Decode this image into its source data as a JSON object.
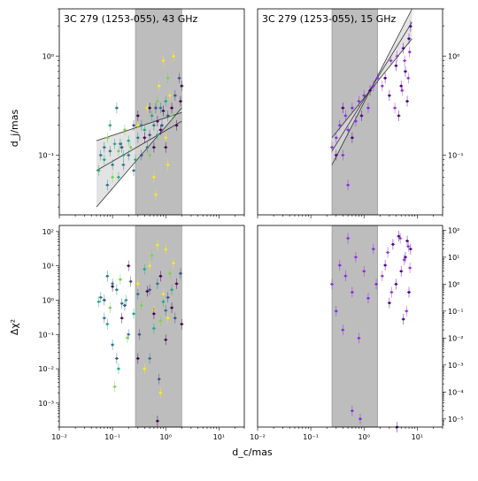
{
  "figure": {
    "x_label": "d_c/mas",
    "y_label_top": "d_j/mas",
    "y_label_bottom": "Δχ²"
  },
  "chart_data": [
    {
      "panel": "top-left",
      "type": "scatter",
      "title": "3C 279 (1253-055), 43 GHz",
      "xscale": "log",
      "yscale": "log",
      "xlim": [
        0.01,
        30
      ],
      "ylim": [
        0.025,
        3.0
      ],
      "xticks": [],
      "xtick_labels": [],
      "yticks": [
        0.1,
        1
      ],
      "ytick_labels": [
        "10⁻¹",
        "10⁰"
      ],
      "ytick_side": "left",
      "shaded_band": [
        0.27,
        2.0
      ],
      "shaded_region_x": [
        0.05,
        2.0
      ],
      "fit_lines": [
        [
          [
            0.05,
            0.03
          ],
          [
            2.0,
            0.3
          ]
        ],
        [
          [
            0.05,
            0.14
          ],
          [
            2.0,
            0.27
          ]
        ],
        [
          [
            0.05,
            0.07
          ],
          [
            2.0,
            0.22
          ]
        ]
      ],
      "series": [
        {
          "color": "#2a788e",
          "points": [
            [
              0.06,
              0.1
            ],
            [
              0.07,
              0.12
            ],
            [
              0.08,
              0.05
            ],
            [
              0.09,
              0.11
            ],
            [
              0.1,
              0.08
            ],
            [
              0.12,
              0.3
            ],
            [
              0.14,
              0.13
            ],
            [
              0.16,
              0.08
            ],
            [
              0.2,
              0.1
            ],
            [
              0.25,
              0.07
            ],
            [
              0.3,
              0.15
            ],
            [
              0.35,
              0.2
            ],
            [
              0.45,
              0.12
            ],
            [
              0.6,
              0.2
            ],
            [
              0.8,
              0.3
            ]
          ]
        },
        {
          "color": "#22a884",
          "points": [
            [
              0.055,
              0.07
            ],
            [
              0.07,
              0.09
            ],
            [
              0.09,
              0.2
            ],
            [
              0.11,
              0.13
            ],
            [
              0.13,
              0.06
            ],
            [
              0.16,
              0.1
            ],
            [
              0.2,
              0.14
            ],
            [
              0.27,
              0.09
            ],
            [
              0.4,
              0.18
            ],
            [
              0.55,
              0.25
            ],
            [
              0.7,
              0.16
            ],
            [
              1.0,
              0.35
            ]
          ]
        },
        {
          "color": "#7ad151",
          "points": [
            [
              0.08,
              0.15
            ],
            [
              0.1,
              0.06
            ],
            [
              0.13,
              0.11
            ],
            [
              0.17,
              0.18
            ],
            [
              0.22,
              0.12
            ],
            [
              0.5,
              0.1
            ],
            [
              0.7,
              0.35
            ],
            [
              1.1,
              0.6
            ],
            [
              1.3,
              0.25
            ]
          ]
        },
        {
          "color": "#fde725",
          "points": [
            [
              0.3,
              0.2
            ],
            [
              0.45,
              0.3
            ],
            [
              0.6,
              0.06
            ],
            [
              0.75,
              0.5
            ],
            [
              0.9,
              0.9
            ],
            [
              1.0,
              0.15
            ],
            [
              1.1,
              0.08
            ],
            [
              1.2,
              0.4
            ],
            [
              1.4,
              1.0
            ],
            [
              0.65,
              0.04
            ]
          ]
        },
        {
          "color": "#440154",
          "points": [
            [
              0.3,
              0.25
            ],
            [
              0.4,
              0.15
            ],
            [
              0.5,
              0.3
            ],
            [
              0.6,
              0.12
            ],
            [
              0.7,
              0.22
            ],
            [
              0.8,
              0.18
            ],
            [
              0.9,
              0.28
            ],
            [
              1.0,
              0.12
            ],
            [
              1.3,
              0.3
            ],
            [
              1.6,
              0.2
            ],
            [
              1.9,
              0.35
            ],
            [
              2.0,
              0.5
            ]
          ]
        },
        {
          "color": "#3b528b",
          "points": [
            [
              0.15,
              0.12
            ],
            [
              0.25,
              0.2
            ],
            [
              0.35,
              0.1
            ],
            [
              0.5,
              0.16
            ],
            [
              0.65,
              0.3
            ],
            [
              0.85,
              0.2
            ],
            [
              1.1,
              0.25
            ],
            [
              1.5,
              0.4
            ],
            [
              1.8,
              0.6
            ]
          ]
        }
      ]
    },
    {
      "panel": "top-right",
      "type": "scatter",
      "title": "3C 279 (1253-055), 15 GHz",
      "xscale": "log",
      "yscale": "log",
      "xlim": [
        0.01,
        30
      ],
      "ylim": [
        0.025,
        3.0
      ],
      "xticks": [],
      "xtick_labels": [],
      "yticks": [
        0.1,
        1
      ],
      "ytick_labels": [
        "10⁻¹",
        "10⁰"
      ],
      "ytick_side": "right",
      "shaded_band": [
        0.25,
        1.8
      ],
      "shaded_region_x": [
        0.25,
        8.0
      ],
      "fit_lines": [
        [
          [
            0.25,
            0.08
          ],
          [
            8.0,
            3.0
          ]
        ],
        [
          [
            0.25,
            0.15
          ],
          [
            8.0,
            1.5
          ]
        ],
        [
          [
            0.25,
            0.11
          ],
          [
            8.0,
            2.2
          ]
        ]
      ],
      "series": [
        {
          "color": "#8a2be2",
          "points": [
            [
              0.25,
              0.12
            ],
            [
              0.3,
              0.15
            ],
            [
              0.35,
              0.2
            ],
            [
              0.4,
              0.1
            ],
            [
              0.45,
              0.25
            ],
            [
              0.5,
              0.18
            ],
            [
              0.6,
              0.3
            ],
            [
              0.7,
              0.22
            ],
            [
              0.8,
              0.35
            ],
            [
              1.0,
              0.4
            ],
            [
              1.2,
              0.3
            ],
            [
              1.5,
              0.5
            ],
            [
              1.8,
              0.6
            ],
            [
              0.5,
              0.05
            ]
          ]
        },
        {
          "color": "#4b0082",
          "points": [
            [
              0.3,
              0.1
            ],
            [
              0.4,
              0.3
            ],
            [
              0.6,
              0.15
            ],
            [
              0.9,
              0.25
            ],
            [
              1.3,
              0.45
            ],
            [
              2.5,
              0.6
            ],
            [
              3.0,
              0.4
            ],
            [
              4.0,
              0.8
            ],
            [
              5.0,
              0.5
            ],
            [
              5.5,
              1.2
            ],
            [
              6.0,
              0.7
            ],
            [
              7.0,
              1.5
            ],
            [
              7.5,
              2.0
            ],
            [
              6.5,
              0.35
            ],
            [
              4.5,
              0.25
            ]
          ]
        },
        {
          "color": "#9932cc",
          "points": [
            [
              2.2,
              0.5
            ],
            [
              3.2,
              0.9
            ],
            [
              3.8,
              0.3
            ],
            [
              4.2,
              1.0
            ],
            [
              5.2,
              0.45
            ],
            [
              5.8,
              0.9
            ],
            [
              6.8,
              0.6
            ],
            [
              7.2,
              1.1
            ]
          ]
        }
      ]
    },
    {
      "panel": "bottom-left",
      "type": "scatter",
      "title": "",
      "xscale": "log",
      "yscale": "log",
      "xlim": [
        0.01,
        30
      ],
      "ylim": [
        0.0002,
        150
      ],
      "xticks": [
        0.01,
        0.1,
        1,
        10
      ],
      "xtick_labels": [
        "10⁻²",
        "10⁻¹",
        "10⁰",
        "10¹"
      ],
      "yticks": [
        0.001,
        0.01,
        0.1,
        1,
        10,
        100
      ],
      "ytick_labels": [
        "10⁻³",
        "10⁻²",
        "10⁻¹",
        "10⁰",
        "10¹",
        "10²"
      ],
      "ytick_side": "left",
      "shaded_band": [
        0.27,
        2.0
      ],
      "series": [
        {
          "color": "#2a788e",
          "points": [
            [
              0.06,
              1.2
            ],
            [
              0.07,
              0.3
            ],
            [
              0.08,
              5.0
            ],
            [
              0.1,
              0.05
            ],
            [
              0.12,
              2.0
            ],
            [
              0.15,
              0.8
            ],
            [
              0.2,
              0.1
            ],
            [
              0.3,
              1.5
            ],
            [
              0.5,
              0.02
            ],
            [
              0.7,
              3.0
            ],
            [
              1.0,
              0.5
            ]
          ]
        },
        {
          "color": "#22a884",
          "points": [
            [
              0.055,
              0.9
            ],
            [
              0.08,
              0.2
            ],
            [
              0.1,
              3.0
            ],
            [
              0.13,
              0.01
            ],
            [
              0.18,
              1.0
            ],
            [
              0.25,
              0.4
            ],
            [
              0.4,
              8.0
            ],
            [
              0.6,
              0.15
            ],
            [
              0.9,
              0.9
            ],
            [
              1.3,
              2.0
            ]
          ]
        },
        {
          "color": "#7ad151",
          "points": [
            [
              0.09,
              0.6
            ],
            [
              0.11,
              0.003
            ],
            [
              0.14,
              4.0
            ],
            [
              0.19,
              0.08
            ],
            [
              0.35,
              0.7
            ],
            [
              0.55,
              20.0
            ],
            [
              0.8,
              0.25
            ],
            [
              1.2,
              6.0
            ]
          ]
        },
        {
          "color": "#fde725",
          "points": [
            [
              0.3,
              3.0
            ],
            [
              0.4,
              0.01
            ],
            [
              0.5,
              10.0
            ],
            [
              0.6,
              0.5
            ],
            [
              0.7,
              40.0
            ],
            [
              0.8,
              0.002
            ],
            [
              0.9,
              1.5
            ],
            [
              1.0,
              30.0
            ],
            [
              1.1,
              0.3
            ],
            [
              1.4,
              12.0
            ]
          ]
        },
        {
          "color": "#440154",
          "points": [
            [
              0.1,
              2.5
            ],
            [
              0.15,
              0.3
            ],
            [
              0.2,
              10.0
            ],
            [
              0.3,
              0.02
            ],
            [
              0.45,
              1.8
            ],
            [
              0.6,
              0.4
            ],
            [
              0.8,
              5.0
            ],
            [
              1.0,
              0.07
            ],
            [
              1.3,
              0.6
            ],
            [
              1.6,
              3.0
            ],
            [
              2.0,
              0.2
            ],
            [
              0.7,
              0.0003
            ]
          ]
        },
        {
          "color": "#3b528b",
          "points": [
            [
              0.07,
              1.0
            ],
            [
              0.12,
              0.02
            ],
            [
              0.17,
              0.7
            ],
            [
              0.22,
              3.5
            ],
            [
              0.32,
              0.1
            ],
            [
              0.5,
              2.0
            ],
            [
              0.75,
              0.005
            ],
            [
              1.1,
              1.2
            ],
            [
              1.5,
              0.3
            ],
            [
              1.9,
              6.0
            ]
          ]
        }
      ]
    },
    {
      "panel": "bottom-right",
      "type": "scatter",
      "title": "",
      "xscale": "log",
      "yscale": "log",
      "xlim": [
        0.01,
        30
      ],
      "ylim": [
        5e-06,
        150
      ],
      "xticks": [
        0.01,
        0.1,
        1,
        10
      ],
      "xtick_labels": [
        "10⁻²",
        "10⁻¹",
        "10⁰",
        "10¹"
      ],
      "yticks": [
        1e-05,
        0.0001,
        0.001,
        0.01,
        0.1,
        1,
        10,
        100
      ],
      "ytick_labels": [
        "10⁻⁵",
        "10⁻⁴",
        "10⁻³",
        "10⁻²",
        "10⁻¹",
        "10⁰",
        "10¹",
        "10²"
      ],
      "ytick_side": "right",
      "shaded_band": [
        0.25,
        1.8
      ],
      "series": [
        {
          "color": "#8a2be2",
          "points": [
            [
              0.25,
              1.0
            ],
            [
              0.3,
              0.1
            ],
            [
              0.35,
              5.0
            ],
            [
              0.4,
              0.02
            ],
            [
              0.45,
              2.0
            ],
            [
              0.5,
              50.0
            ],
            [
              0.6,
              0.5
            ],
            [
              0.7,
              10.0
            ],
            [
              0.8,
              0.01
            ],
            [
              1.0,
              3.0
            ],
            [
              1.2,
              0.3
            ],
            [
              1.5,
              20.0
            ],
            [
              1.7,
              1.0
            ],
            [
              0.6,
              2e-05
            ],
            [
              0.85,
              1e-05
            ]
          ]
        },
        {
          "color": "#4b0082",
          "points": [
            [
              2.5,
              5.0
            ],
            [
              3.0,
              0.2
            ],
            [
              3.5,
              30.0
            ],
            [
              4.0,
              1.0
            ],
            [
              4.5,
              60.0
            ],
            [
              5.0,
              3.0
            ],
            [
              5.5,
              0.05
            ],
            [
              6.0,
              10.0
            ],
            [
              6.5,
              40.0
            ],
            [
              7.0,
              0.5
            ],
            [
              7.5,
              20.0
            ],
            [
              4.2,
              5e-06
            ]
          ]
        },
        {
          "color": "#9932cc",
          "points": [
            [
              2.2,
              2.0
            ],
            [
              2.8,
              15.0
            ],
            [
              3.3,
              0.5
            ],
            [
              4.8,
              50.0
            ],
            [
              5.7,
              8.0
            ],
            [
              6.3,
              0.1
            ],
            [
              6.8,
              25.0
            ],
            [
              7.3,
              4.0
            ]
          ]
        }
      ]
    }
  ]
}
